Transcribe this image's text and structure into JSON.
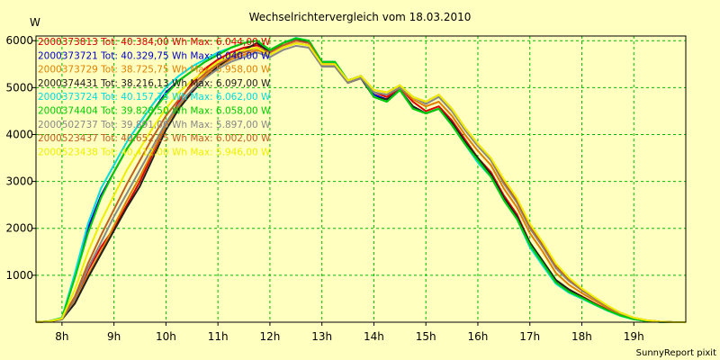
{
  "chart_data": {
    "type": "line",
    "title": "Wechselrichtervergleich vom 18.03.2010",
    "ylabel": "W",
    "xlabel": "",
    "credit": "SunnyReport pixit",
    "x_hours": [
      7.5,
      7.75,
      8.0,
      8.25,
      8.5,
      8.75,
      9.0,
      9.25,
      9.5,
      9.75,
      10.0,
      10.25,
      10.5,
      10.75,
      11.0,
      11.25,
      11.5,
      11.75,
      12.0,
      12.25,
      12.5,
      12.75,
      13.0,
      13.25,
      13.5,
      13.75,
      14.0,
      14.25,
      14.5,
      14.75,
      15.0,
      15.25,
      15.5,
      15.75,
      16.0,
      16.25,
      16.5,
      16.75,
      17.0,
      17.25,
      17.5,
      17.75,
      18.0,
      18.25,
      18.5,
      18.75,
      19.0,
      19.25,
      19.5,
      19.75,
      20.0
    ],
    "x_tick_values": [
      8,
      9,
      10,
      11,
      12,
      13,
      14,
      15,
      16,
      17,
      18,
      19
    ],
    "x_tick_labels": [
      "8h",
      "9h",
      "10h",
      "11h",
      "12h",
      "13h",
      "14h",
      "15h",
      "16h",
      "17h",
      "18h",
      "19h"
    ],
    "xlim": [
      7.5,
      20.0
    ],
    "ylim": [
      0,
      6100
    ],
    "y_ticks": [
      1000,
      2000,
      3000,
      4000,
      5000,
      6000
    ],
    "grid": true,
    "legend_position": "top-left",
    "series": [
      {
        "name": "2000373813 Tot: 40.384,00 Wh Max: 6.044,00 W",
        "color": "#dd0000",
        "values": [
          0,
          20,
          80,
          500,
          1100,
          1600,
          2000,
          2500,
          3000,
          3600,
          4200,
          4700,
          5100,
          5400,
          5600,
          5750,
          5850,
          5900,
          5800,
          5900,
          6000,
          5950,
          5500,
          5500,
          5100,
          5200,
          4900,
          4800,
          5000,
          4700,
          4500,
          4600,
          4300,
          3900,
          3500,
          3200,
          2700,
          2300,
          1700,
          1300,
          900,
          700,
          550,
          400,
          260,
          150,
          70,
          30,
          10,
          0,
          0
        ]
      },
      {
        "name": "2000373721 Tot: 40.329,75 Wh Max: 6.040,00 W",
        "color": "#0000cc",
        "values": [
          0,
          20,
          90,
          1000,
          2000,
          2700,
          3200,
          3700,
          4100,
          4500,
          4900,
          5150,
          5350,
          5550,
          5700,
          5850,
          5950,
          6000,
          5800,
          5950,
          6040,
          6000,
          5550,
          5550,
          5150,
          5250,
          4850,
          4750,
          4950,
          4600,
          4450,
          4550,
          4250,
          3850,
          3450,
          3150,
          2650,
          2250,
          1650,
          1250,
          850,
          650,
          520,
          380,
          250,
          140,
          65,
          25,
          8,
          0,
          0
        ]
      },
      {
        "name": "2000373729 Tot: 38.725,75 Wh Max: 5.958,00 W",
        "color": "#e08000",
        "values": [
          0,
          18,
          70,
          450,
          1000,
          1500,
          2050,
          2600,
          3100,
          3650,
          4200,
          4600,
          4950,
          5250,
          5450,
          5600,
          5700,
          5800,
          5700,
          5850,
          5950,
          5900,
          5450,
          5450,
          5100,
          5200,
          4900,
          4850,
          5000,
          4750,
          4600,
          4700,
          4400,
          4000,
          3650,
          3350,
          2850,
          2450,
          1900,
          1500,
          1050,
          800,
          620,
          460,
          300,
          170,
          80,
          35,
          10,
          0,
          0
        ]
      },
      {
        "name": "2000374431 Tot: 38.216,13 Wh Max: 6.097,00 W",
        "color": "#202020",
        "values": [
          0,
          15,
          60,
          400,
          950,
          1450,
          1950,
          2450,
          2900,
          3500,
          4100,
          4550,
          4900,
          5200,
          5450,
          5650,
          5800,
          5950,
          5750,
          5950,
          6050,
          5950,
          5450,
          5450,
          5100,
          5200,
          4800,
          4750,
          4950,
          4600,
          4450,
          4550,
          4250,
          3850,
          3500,
          3150,
          2650,
          2250,
          1700,
          1300,
          900,
          700,
          540,
          390,
          250,
          140,
          65,
          25,
          8,
          0,
          0
        ]
      },
      {
        "name": "2000373724 Tot: 40.157,75 Wh Max: 6.062,00 W",
        "color": "#00dddd",
        "values": [
          0,
          20,
          95,
          1050,
          2100,
          2850,
          3350,
          3850,
          4250,
          4650,
          5000,
          5250,
          5450,
          5600,
          5750,
          5850,
          5950,
          6000,
          5800,
          5950,
          6060,
          6000,
          5550,
          5550,
          5150,
          5250,
          4800,
          4700,
          4950,
          4550,
          4450,
          4550,
          4200,
          3800,
          3400,
          3100,
          2600,
          2200,
          1600,
          1200,
          820,
          630,
          500,
          370,
          240,
          130,
          60,
          25,
          8,
          0,
          0
        ]
      },
      {
        "name": "2000374404 Tot: 39.828,50 Wh Max: 6.058,00 W",
        "color": "#00cc00",
        "values": [
          0,
          20,
          90,
          950,
          1900,
          2650,
          3200,
          3700,
          4100,
          4500,
          4850,
          5150,
          5350,
          5550,
          5700,
          5850,
          5950,
          6000,
          5800,
          5950,
          6050,
          6000,
          5550,
          5550,
          5150,
          5250,
          4800,
          4700,
          4950,
          4550,
          4450,
          4550,
          4200,
          3800,
          3450,
          3100,
          2600,
          2200,
          1650,
          1250,
          850,
          650,
          520,
          380,
          250,
          140,
          65,
          25,
          8,
          0,
          0
        ]
      },
      {
        "name": "2000502737 Tot: 39.891,00 Wh Max: 5.897,00 W",
        "color": "#888888",
        "values": [
          0,
          15,
          65,
          500,
          1150,
          1700,
          2250,
          2750,
          3250,
          3750,
          4250,
          4650,
          4950,
          5200,
          5400,
          5550,
          5650,
          5750,
          5650,
          5800,
          5890,
          5850,
          5450,
          5450,
          5100,
          5200,
          4900,
          4850,
          5000,
          4800,
          4650,
          4800,
          4500,
          4100,
          3750,
          3450,
          2950,
          2550,
          2000,
          1600,
          1150,
          880,
          680,
          500,
          330,
          190,
          90,
          40,
          12,
          0,
          0
        ]
      },
      {
        "name": "2000523437 Tot: 40.652,25 Wh Max: 6.002,00 W",
        "color": "#c06020",
        "values": [
          0,
          18,
          75,
          550,
          1250,
          1850,
          2400,
          2950,
          3450,
          3950,
          4400,
          4750,
          5050,
          5300,
          5500,
          5650,
          5750,
          5850,
          5750,
          5900,
          6000,
          5950,
          5500,
          5500,
          5150,
          5250,
          4950,
          4900,
          5050,
          4800,
          4700,
          4850,
          4550,
          4150,
          3800,
          3500,
          3000,
          2600,
          2050,
          1650,
          1200,
          920,
          700,
          520,
          340,
          200,
          95,
          40,
          12,
          0,
          0
        ]
      },
      {
        "name": "2000523438 Tot: 40.412,00 Wh Max: 5.946,00 W",
        "color": "#eeee00",
        "values": [
          0,
          18,
          80,
          700,
          1500,
          2150,
          2700,
          3250,
          3700,
          4150,
          4550,
          4900,
          5150,
          5350,
          5550,
          5700,
          5800,
          5850,
          5700,
          5850,
          5940,
          5900,
          5500,
          5500,
          5150,
          5250,
          4950,
          4900,
          5050,
          4800,
          4700,
          4850,
          4550,
          4150,
          3800,
          3500,
          3050,
          2650,
          2100,
          1700,
          1250,
          950,
          720,
          530,
          350,
          200,
          95,
          40,
          12,
          0,
          0
        ]
      }
    ]
  }
}
